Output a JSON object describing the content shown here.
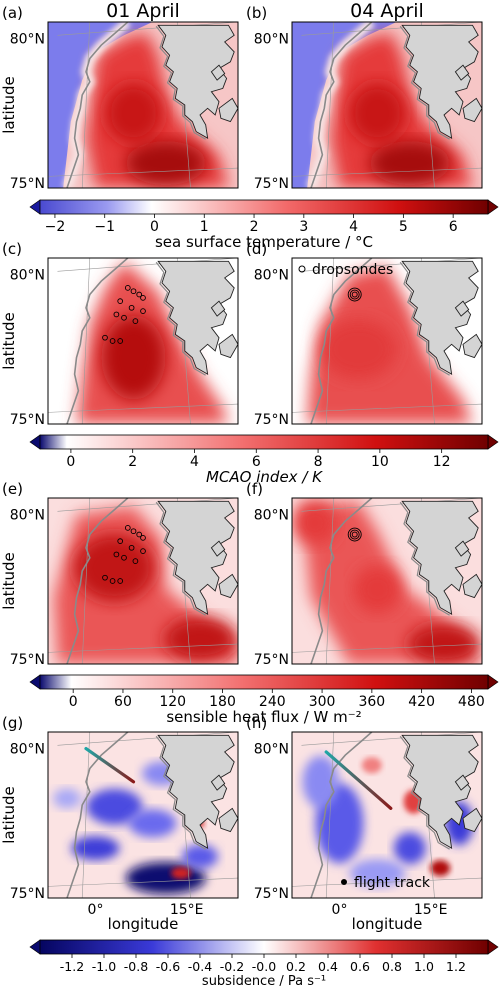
{
  "panels": [
    {
      "label": "(a)",
      "title": "01 April"
    },
    {
      "label": "(b)",
      "title": "04 April"
    },
    {
      "label": "(c)",
      "title": ""
    },
    {
      "label": "(d)",
      "title": ""
    },
    {
      "label": "(e)",
      "title": ""
    },
    {
      "label": "(f)",
      "title": ""
    },
    {
      "label": "(g)",
      "title": ""
    },
    {
      "label": "(h)",
      "title": ""
    }
  ],
  "axes": {
    "ylabel": "latitude",
    "xlabel": "longitude",
    "lat_ticks": [
      "80°N",
      "75°N"
    ],
    "lon_ticks": [
      "0°",
      "15°E"
    ]
  },
  "legends": {
    "dropsondes": "dropsondes",
    "flight_track": "flight track"
  },
  "colorbars": [
    {
      "label": "sea surface temperature / °C",
      "ticks": [
        "−2",
        "−1",
        "0",
        "1",
        "2",
        "3",
        "4",
        "5",
        "6"
      ],
      "min": -2.3,
      "max": 6.7
    },
    {
      "label": "MCAO index / K",
      "ticks": [
        "0",
        "2",
        "4",
        "6",
        "8",
        "10",
        "12"
      ],
      "min": -1,
      "max": 13.5
    },
    {
      "label": "sensible heat flux / W m⁻²",
      "ticks": [
        "0",
        "60",
        "120",
        "180",
        "240",
        "300",
        "360",
        "420",
        "480"
      ],
      "min": -40,
      "max": 500
    },
    {
      "label": "subsidence / Pa s⁻¹",
      "ticks": [
        "-1.2",
        "-1.0",
        "-0.8",
        "-0.6",
        "-0.4",
        "-0.2",
        "-0.0",
        "0.2",
        "0.4",
        "0.6",
        "0.8",
        "1.0",
        "1.2"
      ],
      "min": -1.4,
      "max": 1.4
    }
  ],
  "colors": {
    "land": "#d4d4d4",
    "ocean_cold": "#7b7bea",
    "warm_max": "#7a0000",
    "cold_max": "#0a0a6e",
    "flight_track_start": "#1fa6a6",
    "flight_track_end": "#8a1a1a"
  },
  "chart_data": [
    {
      "type": "heatmap",
      "panel": "(a)",
      "field": "sea surface temperature",
      "date": "01 April",
      "range": [
        -2,
        6
      ]
    },
    {
      "type": "heatmap",
      "panel": "(b)",
      "field": "sea surface temperature",
      "date": "04 April",
      "range": [
        -2,
        6
      ]
    },
    {
      "type": "heatmap",
      "panel": "(c)",
      "field": "MCAO index",
      "date": "01 April",
      "range": [
        0,
        12
      ]
    },
    {
      "type": "heatmap",
      "panel": "(d)",
      "field": "MCAO index",
      "date": "04 April",
      "range": [
        0,
        12
      ]
    },
    {
      "type": "heatmap",
      "panel": "(e)",
      "field": "sensible heat flux",
      "date": "01 April",
      "range": [
        0,
        480
      ]
    },
    {
      "type": "heatmap",
      "panel": "(f)",
      "field": "sensible heat flux",
      "date": "04 April",
      "range": [
        0,
        480
      ]
    },
    {
      "type": "heatmap",
      "panel": "(g)",
      "field": "subsidence",
      "date": "01 April",
      "range": [
        -1.2,
        1.2
      ]
    },
    {
      "type": "heatmap",
      "panel": "(h)",
      "field": "subsidence",
      "date": "04 April",
      "range": [
        -1.2,
        1.2
      ]
    }
  ]
}
